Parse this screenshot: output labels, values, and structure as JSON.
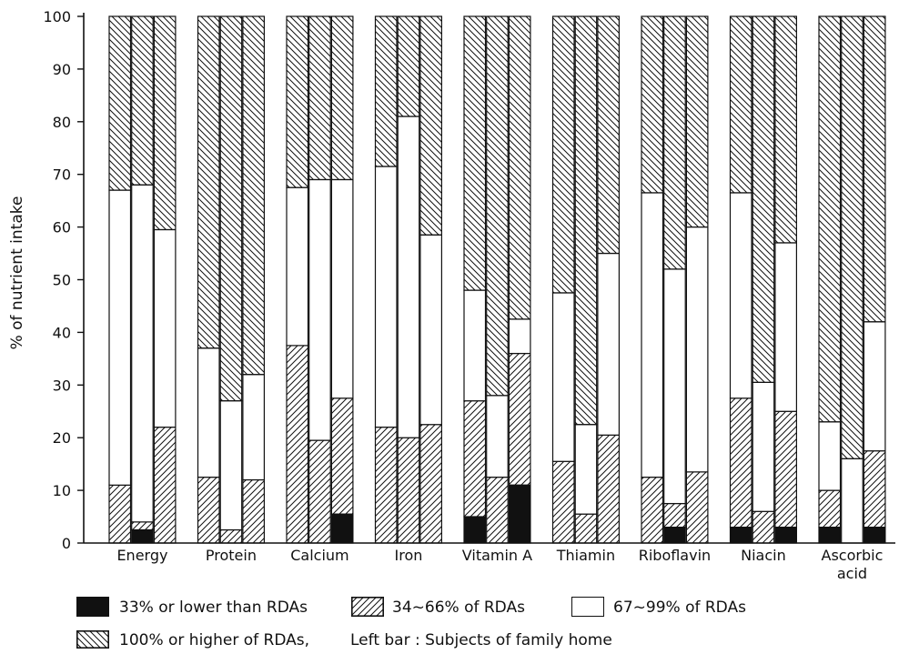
{
  "chart_data": {
    "type": "bar",
    "stacked": true,
    "title": "",
    "ylabel": "% of nutrient intake",
    "ylim": [
      0,
      100
    ],
    "yticks": [
      0,
      10,
      20,
      30,
      40,
      50,
      60,
      70,
      80,
      90,
      100
    ],
    "grid": false,
    "groups": [
      {
        "label": "Energy",
        "bars": [
          [
            0,
            11,
            56,
            33
          ],
          [
            2.5,
            1.5,
            64,
            32
          ],
          [
            0,
            22,
            37.5,
            40.5
          ]
        ]
      },
      {
        "label": "Protein",
        "bars": [
          [
            0,
            12.5,
            24.5,
            63
          ],
          [
            0,
            2.5,
            24.5,
            73
          ],
          [
            0,
            12,
            20,
            68
          ]
        ]
      },
      {
        "label": "Calcium",
        "bars": [
          [
            0,
            37.5,
            30,
            32.5
          ],
          [
            0,
            19.5,
            49.5,
            31
          ],
          [
            5.5,
            22,
            41.5,
            31
          ]
        ]
      },
      {
        "label": "Iron",
        "bars": [
          [
            0,
            22,
            49.5,
            28.5
          ],
          [
            0,
            20,
            61,
            19
          ],
          [
            0,
            22.5,
            36,
            41.5
          ]
        ]
      },
      {
        "label": "Vitamin A",
        "bars": [
          [
            5,
            22,
            21,
            52
          ],
          [
            0,
            12.5,
            15.5,
            72
          ],
          [
            11,
            25,
            6.5,
            57.5
          ]
        ]
      },
      {
        "label": "Thiamin",
        "bars": [
          [
            0,
            15.5,
            32,
            52.5
          ],
          [
            0,
            5.5,
            17,
            77.5
          ],
          [
            0,
            20.5,
            34.5,
            45
          ]
        ]
      },
      {
        "label": "Riboflavin",
        "bars": [
          [
            0,
            12.5,
            54,
            33.5
          ],
          [
            3,
            4.5,
            44.5,
            48
          ],
          [
            0,
            13.5,
            46.5,
            40
          ]
        ]
      },
      {
        "label": "Niacin",
        "bars": [
          [
            3,
            24.5,
            39,
            33.5
          ],
          [
            0,
            6,
            24.5,
            69.5
          ],
          [
            3,
            22,
            32,
            43
          ]
        ]
      },
      {
        "label": "Ascorbic\nacid",
        "bars": [
          [
            3,
            7,
            13,
            77
          ],
          [
            0,
            0,
            16,
            84
          ],
          [
            3,
            14.5,
            24.5,
            58
          ]
        ]
      }
    ],
    "series": [
      {
        "name": "33% or lower than RDAs",
        "pattern": "solid-black"
      },
      {
        "name": "34~66% of RDAs",
        "pattern": "hatch-forward"
      },
      {
        "name": "67~99% of RDAs",
        "pattern": "white"
      },
      {
        "name": "100% or higher of RDAs,",
        "pattern": "hatch-back"
      }
    ],
    "note": "Left bar : Subjects of family home",
    "colors": {
      "ink": "#111111",
      "paper": "#ffffff"
    }
  }
}
